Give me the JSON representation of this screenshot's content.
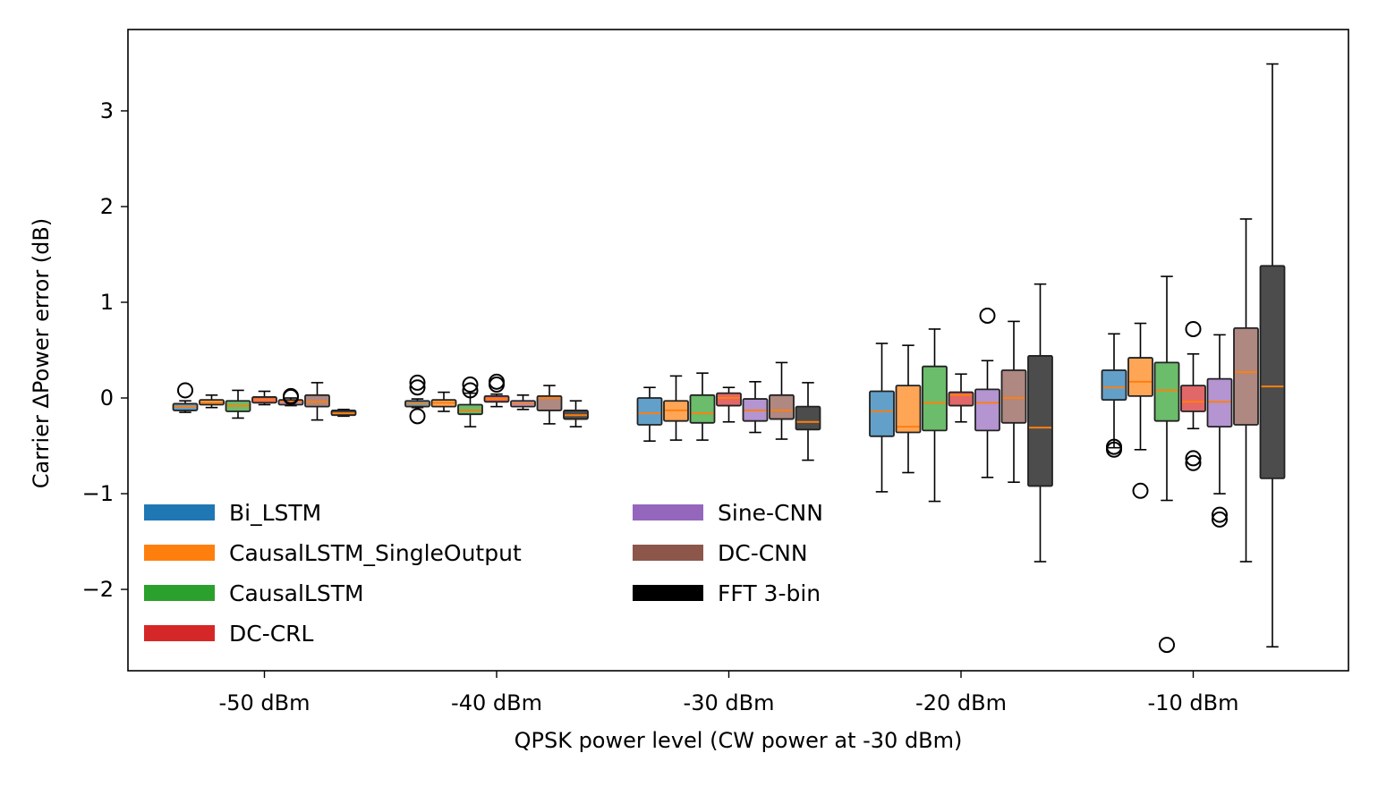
{
  "chart_data": {
    "type": "box",
    "title": "",
    "xlabel": "QPSK power level (CW power at -30 dBm)",
    "ylabel": "Carrier ΔPower error (dB)",
    "ylim": [
      -2.85,
      3.85
    ],
    "yticks": [
      -2,
      -1,
      0,
      1,
      2,
      3
    ],
    "ytick_labels": [
      "−2",
      "−1",
      "0",
      "1",
      "2",
      "3"
    ],
    "categories": [
      "-50 dBm",
      "-40 dBm",
      "-30 dBm",
      "-20 dBm",
      "-10 dBm"
    ],
    "series": [
      {
        "name": "Bi_LSTM",
        "color": "#1f77b4",
        "boxes": [
          {
            "whislo": -0.15,
            "q1": -0.13,
            "med": -0.09,
            "q3": -0.06,
            "whishi": -0.03,
            "fliers": [
              0.08
            ]
          },
          {
            "whislo": -0.1,
            "q1": -0.09,
            "med": -0.06,
            "q3": -0.03,
            "whishi": -0.01,
            "fliers": [
              0.16,
              0.11,
              -0.19
            ]
          },
          {
            "whislo": -0.45,
            "q1": -0.28,
            "med": -0.16,
            "q3": 0.0,
            "whishi": 0.11,
            "fliers": []
          },
          {
            "whislo": -0.98,
            "q1": -0.4,
            "med": -0.14,
            "q3": 0.07,
            "whishi": 0.57,
            "fliers": []
          },
          {
            "whislo": -0.52,
            "q1": -0.02,
            "med": 0.11,
            "q3": 0.29,
            "whishi": 0.67,
            "fliers": [
              -0.51,
              -0.54
            ]
          }
        ]
      },
      {
        "name": "CausalLSTM_SingleOutput",
        "color": "#ff7f0e",
        "boxes": [
          {
            "whislo": -0.1,
            "q1": -0.07,
            "med": -0.05,
            "q3": -0.02,
            "whishi": 0.03,
            "fliers": []
          },
          {
            "whislo": -0.14,
            "q1": -0.09,
            "med": -0.05,
            "q3": -0.02,
            "whishi": 0.06,
            "fliers": []
          },
          {
            "whislo": -0.44,
            "q1": -0.24,
            "med": -0.13,
            "q3": -0.03,
            "whishi": 0.23,
            "fliers": []
          },
          {
            "whislo": -0.78,
            "q1": -0.36,
            "med": -0.3,
            "q3": 0.13,
            "whishi": 0.55,
            "fliers": []
          },
          {
            "whislo": -0.54,
            "q1": 0.02,
            "med": 0.17,
            "q3": 0.42,
            "whishi": 0.78,
            "fliers": [
              -0.97
            ]
          }
        ]
      },
      {
        "name": "CausalLSTM",
        "color": "#2ca02c",
        "boxes": [
          {
            "whislo": -0.21,
            "q1": -0.14,
            "med": -0.08,
            "q3": -0.03,
            "whishi": 0.08,
            "fliers": []
          },
          {
            "whislo": -0.3,
            "q1": -0.17,
            "med": -0.13,
            "q3": -0.07,
            "whishi": 0.05,
            "fliers": [
              0.14,
              0.08
            ]
          },
          {
            "whislo": -0.44,
            "q1": -0.26,
            "med": -0.16,
            "q3": 0.03,
            "whishi": 0.26,
            "fliers": []
          },
          {
            "whislo": -1.08,
            "q1": -0.34,
            "med": -0.05,
            "q3": 0.33,
            "whishi": 0.72,
            "fliers": []
          },
          {
            "whislo": -1.07,
            "q1": -0.24,
            "med": 0.08,
            "q3": 0.37,
            "whishi": 1.27,
            "fliers": [
              -2.58
            ]
          }
        ]
      },
      {
        "name": "DC-CRL",
        "color": "#d62728",
        "boxes": [
          {
            "whislo": -0.07,
            "q1": -0.05,
            "med": -0.02,
            "q3": 0.01,
            "whishi": 0.07,
            "fliers": []
          },
          {
            "whislo": -0.09,
            "q1": -0.04,
            "med": -0.01,
            "q3": 0.02,
            "whishi": 0.04,
            "fliers": [
              0.17,
              0.14
            ]
          },
          {
            "whislo": -0.25,
            "q1": -0.08,
            "med": 0.0,
            "q3": 0.05,
            "whishi": 0.11,
            "fliers": []
          },
          {
            "whislo": -0.25,
            "q1": -0.08,
            "med": 0.03,
            "q3": 0.06,
            "whishi": 0.25,
            "fliers": []
          },
          {
            "whislo": -0.32,
            "q1": -0.14,
            "med": -0.04,
            "q3": 0.13,
            "whishi": 0.46,
            "fliers": [
              0.72,
              -0.63,
              -0.68
            ]
          }
        ]
      },
      {
        "name": "Sine-CNN",
        "color": "#9467bd",
        "boxes": [
          {
            "whislo": -0.08,
            "q1": -0.07,
            "med": -0.04,
            "q3": -0.02,
            "whishi": 0.0,
            "fliers": [
              0.02,
              0.01
            ]
          },
          {
            "whislo": -0.12,
            "q1": -0.09,
            "med": -0.06,
            "q3": -0.03,
            "whishi": 0.03,
            "fliers": []
          },
          {
            "whislo": -0.36,
            "q1": -0.24,
            "med": -0.13,
            "q3": -0.01,
            "whishi": 0.17,
            "fliers": []
          },
          {
            "whislo": -0.83,
            "q1": -0.34,
            "med": -0.05,
            "q3": 0.09,
            "whishi": 0.39,
            "fliers": [
              0.86
            ]
          },
          {
            "whislo": -1.0,
            "q1": -0.3,
            "med": -0.04,
            "q3": 0.2,
            "whishi": 0.66,
            "fliers": [
              -1.22,
              -1.27
            ]
          }
        ]
      },
      {
        "name": "DC-CNN",
        "color": "#8c564b",
        "boxes": [
          {
            "whislo": -0.23,
            "q1": -0.09,
            "med": -0.04,
            "q3": 0.03,
            "whishi": 0.16,
            "fliers": []
          },
          {
            "whislo": -0.27,
            "q1": -0.13,
            "med": 0.0,
            "q3": 0.02,
            "whishi": 0.13,
            "fliers": []
          },
          {
            "whislo": -0.43,
            "q1": -0.22,
            "med": -0.13,
            "q3": 0.03,
            "whishi": 0.37,
            "fliers": []
          },
          {
            "whislo": -0.88,
            "q1": -0.26,
            "med": 0.0,
            "q3": 0.29,
            "whishi": 0.8,
            "fliers": []
          },
          {
            "whislo": -1.71,
            "q1": -0.28,
            "med": 0.27,
            "q3": 0.73,
            "whishi": 1.87,
            "fliers": []
          }
        ]
      },
      {
        "name": "FFT 3-bin",
        "color": "#000000",
        "boxes": [
          {
            "whislo": -0.19,
            "q1": -0.18,
            "med": -0.16,
            "q3": -0.13,
            "whishi": -0.12,
            "fliers": []
          },
          {
            "whislo": -0.3,
            "q1": -0.22,
            "med": -0.18,
            "q3": -0.13,
            "whishi": -0.03,
            "fliers": []
          },
          {
            "whislo": -0.65,
            "q1": -0.33,
            "med": -0.25,
            "q3": -0.09,
            "whishi": 0.16,
            "fliers": []
          },
          {
            "whislo": -1.71,
            "q1": -0.92,
            "med": -0.31,
            "q3": 0.44,
            "whishi": 1.19,
            "fliers": []
          },
          {
            "whislo": -2.6,
            "q1": -0.84,
            "med": 0.12,
            "q3": 1.38,
            "whishi": 3.49,
            "fliers": []
          }
        ]
      }
    ],
    "median_color": "#ff7f0e",
    "legend": {
      "placement": "lower-left",
      "columns": 2
    }
  }
}
